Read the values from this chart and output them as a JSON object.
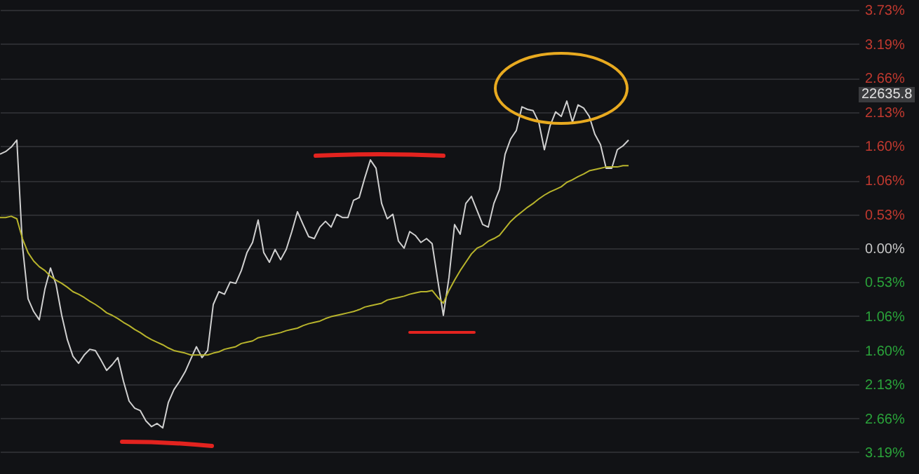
{
  "chart_data": {
    "type": "line",
    "categories": [
      null,
      null,
      null,
      null,
      null,
      null,
      null,
      null,
      null,
      null,
      null,
      null,
      null,
      null,
      null,
      null,
      null,
      null,
      null,
      null,
      null,
      null,
      null,
      null,
      null,
      null,
      null,
      null,
      null,
      null,
      null,
      null,
      null,
      null,
      null,
      null,
      null,
      null,
      null,
      null,
      null,
      null,
      null,
      null,
      null,
      null,
      null,
      null,
      null,
      null,
      null,
      null,
      null,
      null,
      null,
      null,
      null,
      null,
      null,
      null,
      null,
      null,
      null,
      null,
      null,
      null,
      null,
      null,
      null,
      null,
      null,
      null,
      null,
      null,
      null,
      null,
      null,
      null,
      null,
      null,
      null,
      null,
      null,
      null,
      null,
      null,
      null,
      null,
      null,
      null,
      null,
      null,
      null,
      null,
      null,
      null,
      null,
      null,
      null,
      null,
      null,
      null,
      null,
      null,
      null,
      null,
      null,
      null,
      null,
      null,
      null,
      null,
      null,
      null,
      null,
      null,
      null,
      null,
      null,
      null,
      null,
      null,
      null,
      null,
      null,
      null,
      null,
      null,
      null,
      null,
      null,
      null,
      null,
      null,
      null,
      null,
      null,
      null,
      null,
      null,
      null,
      null,
      null,
      null,
      null,
      null,
      null,
      null,
      null,
      null,
      null,
      null,
      null,
      null
    ],
    "series": [
      {
        "color": "#d0d0d0",
        "values": [
          1.47,
          1.51,
          1.58,
          1.69,
          0.04,
          -0.79,
          -0.99,
          -1.12,
          -0.64,
          -0.31,
          -0.57,
          -1.05,
          -1.43,
          -1.69,
          -1.8,
          -1.67,
          -1.58,
          -1.6,
          -1.75,
          -1.91,
          -1.82,
          -1.71,
          -2.08,
          -2.39,
          -2.5,
          -2.54,
          -2.7,
          -2.79,
          -2.74,
          -2.81,
          -2.41,
          -2.21,
          -2.08,
          -1.93,
          -1.73,
          -1.54,
          -1.71,
          -1.6,
          -0.88,
          -0.68,
          -0.72,
          -0.53,
          -0.55,
          -0.35,
          -0.07,
          0.09,
          0.44,
          -0.07,
          -0.22,
          -0.02,
          -0.18,
          -0.02,
          0.26,
          0.57,
          0.37,
          0.18,
          0.15,
          0.33,
          0.42,
          0.33,
          0.53,
          0.48,
          0.48,
          0.75,
          0.79,
          1.1,
          1.38,
          1.25,
          0.7,
          0.46,
          0.53,
          0.11,
          0.0,
          0.26,
          0.2,
          0.09,
          0.15,
          0.07,
          -0.5,
          -1.05,
          -0.46,
          0.37,
          0.22,
          0.7,
          0.81,
          0.59,
          0.37,
          0.33,
          0.7,
          0.92,
          1.47,
          1.71,
          1.84,
          2.21,
          2.17,
          2.15,
          1.97,
          1.54,
          1.91,
          2.13,
          2.06,
          2.3,
          1.97,
          2.24,
          2.19,
          2.06,
          1.78,
          1.62,
          1.25,
          1.25,
          1.54,
          1.6,
          1.69,
          null,
          null,
          null,
          null,
          null,
          null,
          null,
          null,
          null,
          null,
          null,
          null,
          null,
          null,
          null,
          null,
          null,
          null,
          null,
          null,
          null,
          null,
          null,
          null,
          null,
          null,
          null,
          null,
          null,
          null,
          null,
          null,
          null,
          null,
          null,
          null,
          null,
          null,
          null,
          null,
          null
        ]
      },
      {
        "color": "#b8b42c",
        "values": [
          0.48,
          0.48,
          0.5,
          0.46,
          0.15,
          -0.07,
          -0.2,
          -0.29,
          -0.35,
          -0.44,
          -0.5,
          -0.55,
          -0.61,
          -0.68,
          -0.72,
          -0.77,
          -0.83,
          -0.88,
          -0.94,
          -1.01,
          -1.05,
          -1.1,
          -1.16,
          -1.21,
          -1.27,
          -1.32,
          -1.38,
          -1.43,
          -1.47,
          -1.51,
          -1.56,
          -1.6,
          -1.62,
          -1.64,
          -1.67,
          -1.67,
          -1.67,
          -1.67,
          -1.64,
          -1.62,
          -1.58,
          -1.56,
          -1.54,
          -1.49,
          -1.47,
          -1.45,
          -1.4,
          -1.38,
          -1.36,
          -1.34,
          -1.32,
          -1.29,
          -1.27,
          -1.25,
          -1.21,
          -1.18,
          -1.16,
          -1.14,
          -1.1,
          -1.07,
          -1.05,
          -1.03,
          -1.01,
          -0.99,
          -0.96,
          -0.92,
          -0.9,
          -0.88,
          -0.86,
          -0.81,
          -0.79,
          -0.77,
          -0.75,
          -0.72,
          -0.7,
          -0.68,
          -0.68,
          -0.66,
          -0.77,
          -0.86,
          -0.66,
          -0.5,
          -0.35,
          -0.22,
          -0.09,
          0.0,
          0.04,
          0.11,
          0.15,
          0.2,
          0.31,
          0.42,
          0.5,
          0.57,
          0.64,
          0.7,
          0.77,
          0.83,
          0.88,
          0.92,
          0.96,
          1.03,
          1.07,
          1.12,
          1.16,
          1.21,
          1.23,
          1.25,
          1.27,
          1.27,
          1.27,
          1.29,
          1.29,
          null,
          null,
          null,
          null,
          null,
          null,
          null,
          null,
          null,
          null,
          null,
          null,
          null,
          null,
          null,
          null,
          null,
          null,
          null,
          null,
          null,
          null,
          null,
          null,
          null,
          null,
          null,
          null,
          null,
          null,
          null,
          null,
          null,
          null,
          null,
          null,
          null,
          null,
          null,
          null,
          null
        ]
      }
    ],
    "ylim": [
      -3.53,
      3.88
    ],
    "yticks": [
      {
        "value": 3.73,
        "label": "3.73%"
      },
      {
        "value": 3.19,
        "label": "3.19%"
      },
      {
        "value": 2.66,
        "label": "2.66%"
      },
      {
        "value": 2.13,
        "label": "2.13%"
      },
      {
        "value": 1.6,
        "label": "1.60%"
      },
      {
        "value": 1.06,
        "label": "1.06%"
      },
      {
        "value": 0.53,
        "label": "0.53%"
      },
      {
        "value": 0,
        "label": "0.00%"
      },
      {
        "value": -0.53,
        "label": "0.53%"
      },
      {
        "value": -1.06,
        "label": "1.06%"
      },
      {
        "value": -1.6,
        "label": "1.60%"
      },
      {
        "value": -2.13,
        "label": "2.13%"
      },
      {
        "value": -2.66,
        "label": "2.66%"
      },
      {
        "value": -3.19,
        "label": "3.19%"
      }
    ],
    "annotations": [
      "22635.8"
    ],
    "grid": "y",
    "tick_labels": "y",
    "marker": "none"
  }
}
